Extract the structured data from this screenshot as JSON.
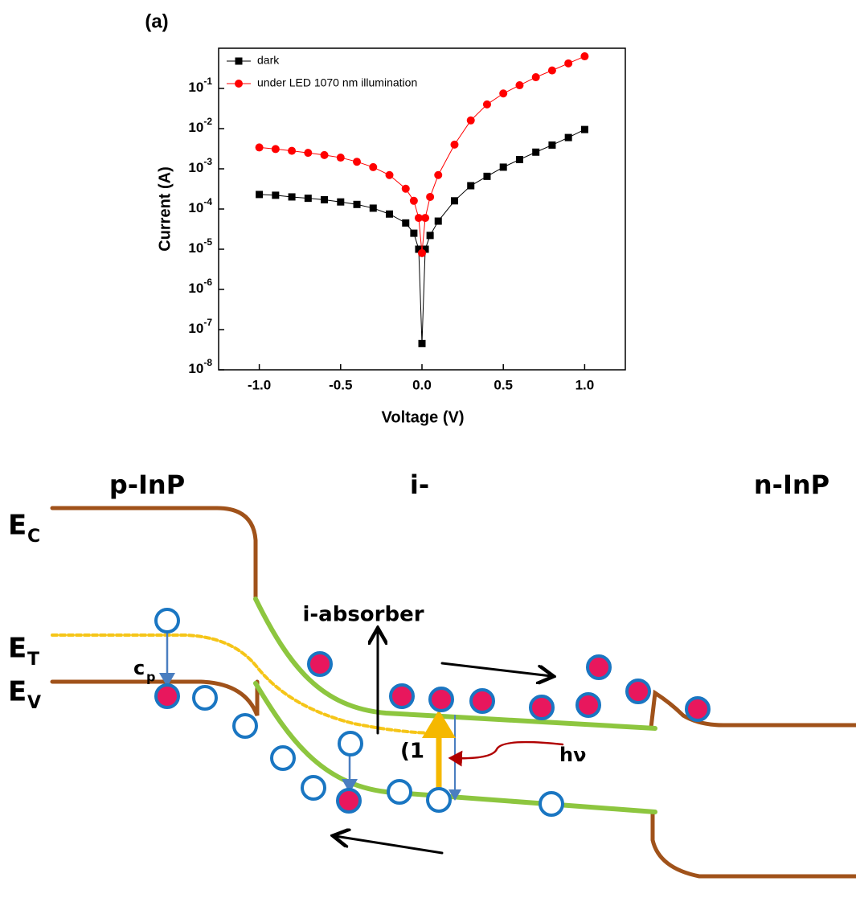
{
  "chart_data": {
    "type": "scatter",
    "title": "(a)",
    "x_label": "Voltage (V)",
    "y_label": "Current (A)",
    "log_y": true,
    "legend": "upper left",
    "x": [
      -1.0,
      -0.9,
      -0.8,
      -0.7,
      -0.6,
      -0.5,
      -0.4,
      -0.3,
      -0.2,
      -0.1,
      -0.05,
      -0.02,
      0,
      0.02,
      0.05,
      0.1,
      0.2,
      0.3,
      0.4,
      0.5,
      0.6,
      0.7,
      0.8,
      0.9,
      1.0
    ],
    "series": [
      {
        "name": "dark",
        "color": "#000000",
        "marker": "square",
        "values": [
          0.00023,
          0.00022,
          0.0002,
          0.000185,
          0.00017,
          0.00015,
          0.00013,
          0.000105,
          7.5e-05,
          4.5e-05,
          2.5e-05,
          1e-05,
          4.5e-08,
          1e-05,
          2.2e-05,
          5e-05,
          0.00016,
          0.00038,
          0.00065,
          0.0011,
          0.0017,
          0.0026,
          0.0039,
          0.006,
          0.0095
        ]
      },
      {
        "name": "under LED 1070 nm illumination",
        "color": "#ff0000",
        "marker": "circle",
        "values": [
          0.0034,
          0.0031,
          0.0028,
          0.0025,
          0.0022,
          0.0019,
          0.0015,
          0.0011,
          0.0007,
          0.00032,
          0.00016,
          6e-05,
          8e-06,
          6e-05,
          0.0002,
          0.0007,
          0.004,
          0.016,
          0.04,
          0.075,
          0.12,
          0.19,
          0.28,
          0.42,
          0.63
        ]
      }
    ],
    "xlim": [
      -1.25,
      1.25
    ],
    "xticks": [
      {
        "value": -1.0,
        "label": "-1.0"
      },
      {
        "value": -0.5,
        "label": "-0.5"
      },
      {
        "value": 0,
        "label": "0.0"
      },
      {
        "value": 0.5,
        "label": "0.5"
      },
      {
        "value": 1.0,
        "label": "1.0"
      }
    ],
    "ylim": [
      1e-08,
      1
    ],
    "yticks": [
      {
        "value": 1e-08,
        "label": "10-8"
      },
      {
        "value": 1e-07,
        "label": "10-7"
      },
      {
        "value": 1e-06,
        "label": "10-6"
      },
      {
        "value": 1e-05,
        "label": "10-5"
      },
      {
        "value": 0.0001,
        "label": "10-4"
      },
      {
        "value": 0.001,
        "label": "10-3"
      },
      {
        "value": 0.01,
        "label": "10-2"
      },
      {
        "value": 0.1,
        "label": "10-1"
      }
    ]
  },
  "diagram": {
    "regions": [
      "p-InP",
      "i-",
      "n-InP"
    ],
    "levels": [
      {
        "symbol": "E",
        "sub": "C"
      },
      {
        "symbol": "E",
        "sub": "T"
      },
      {
        "symbol": "E",
        "sub": "V"
      }
    ],
    "absorber_label": "i-absorber",
    "capture": {
      "symbol": "c",
      "sub": "p"
    },
    "transition_label": "(1",
    "photon": "hν"
  }
}
